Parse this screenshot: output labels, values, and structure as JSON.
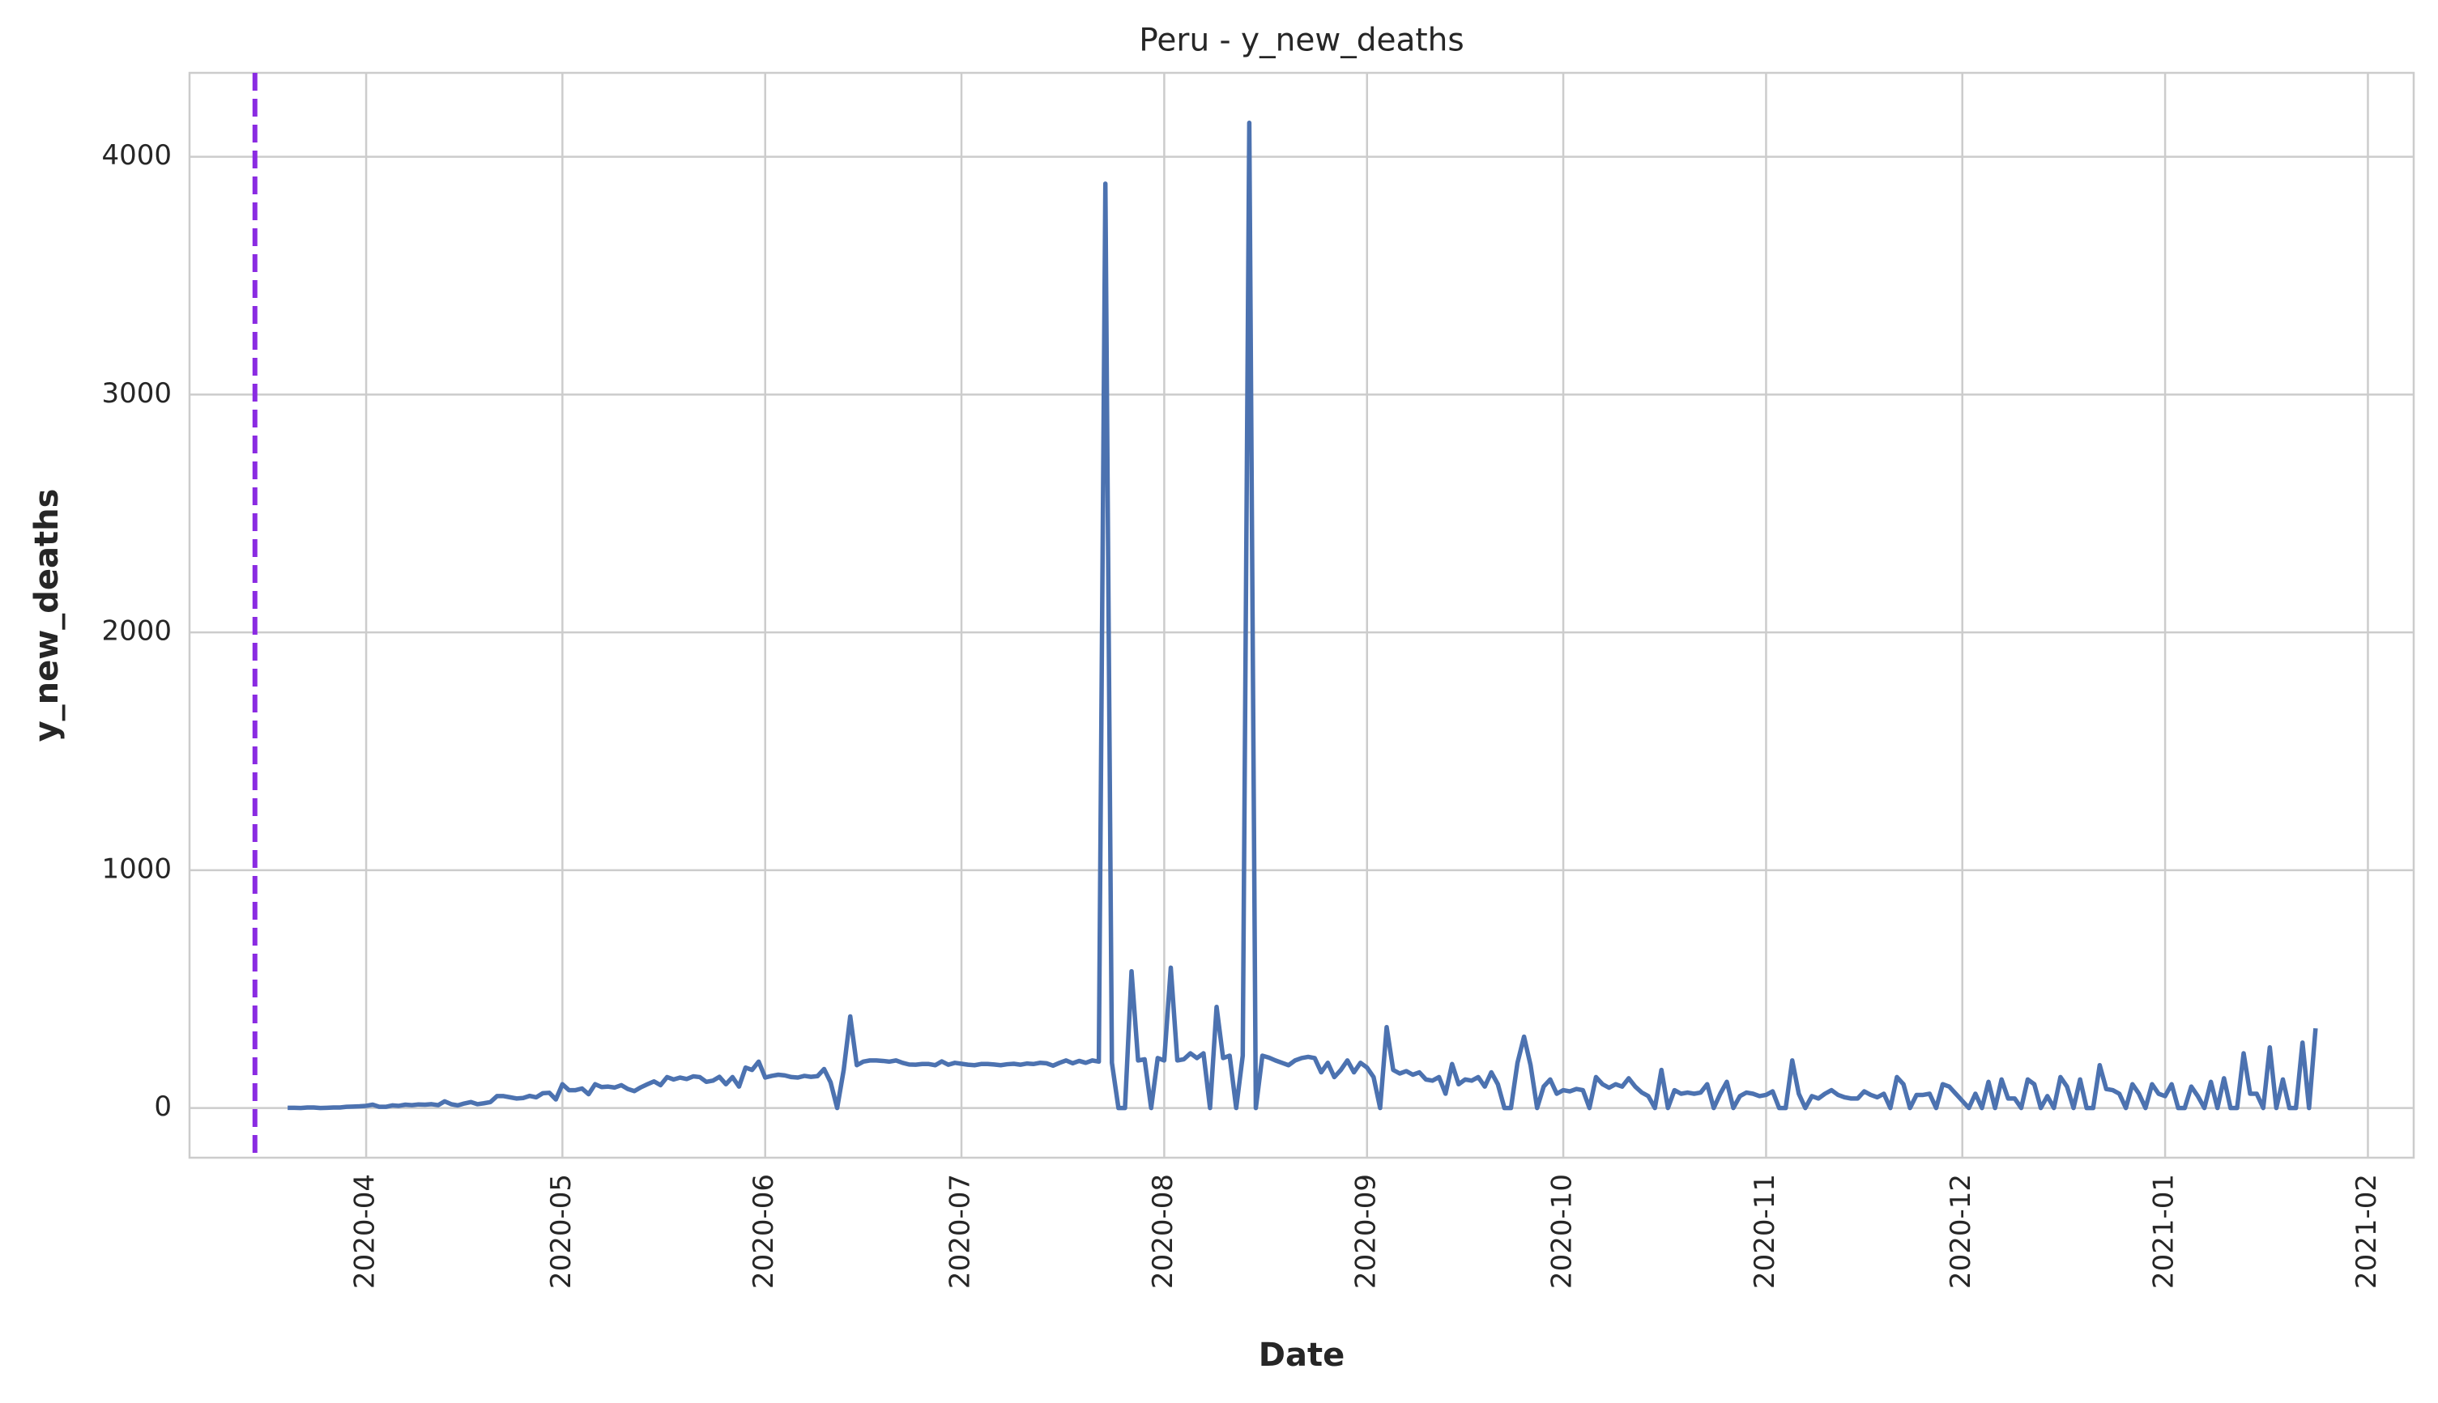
{
  "chart_data": {
    "type": "line",
    "title": "Peru - y_new_deaths",
    "x_label": "Date",
    "y_label": "y_new_deaths",
    "color": "#4c72b0",
    "grid": true,
    "vlines": [
      {
        "x": "2020-03-15",
        "color": "#8a2be2",
        "style": "dashed"
      }
    ],
    "xlim": [
      "2020-03-05",
      "2021-02-08"
    ],
    "ylim": [
      -209,
      4353
    ],
    "yticks": [
      0,
      1000,
      2000,
      3000,
      4000
    ],
    "xticks": [
      {
        "value": "2020-04-01",
        "label": "2020-04"
      },
      {
        "value": "2020-05-01",
        "label": "2020-05"
      },
      {
        "value": "2020-06-01",
        "label": "2020-06"
      },
      {
        "value": "2020-07-01",
        "label": "2020-07"
      },
      {
        "value": "2020-08-01",
        "label": "2020-08"
      },
      {
        "value": "2020-09-01",
        "label": "2020-09"
      },
      {
        "value": "2020-10-01",
        "label": "2020-10"
      },
      {
        "value": "2020-11-01",
        "label": "2020-11"
      },
      {
        "value": "2020-12-01",
        "label": "2020-12"
      },
      {
        "value": "2021-01-01",
        "label": "2021-01"
      },
      {
        "value": "2021-02-01",
        "label": "2021-02"
      }
    ],
    "x": [
      "2020-03-20",
      "2020-03-21",
      "2020-03-22",
      "2020-03-23",
      "2020-03-24",
      "2020-03-25",
      "2020-03-26",
      "2020-03-27",
      "2020-03-28",
      "2020-03-29",
      "2020-03-30",
      "2020-03-31",
      "2020-04-01",
      "2020-04-02",
      "2020-04-03",
      "2020-04-04",
      "2020-04-05",
      "2020-04-06",
      "2020-04-07",
      "2020-04-08",
      "2020-04-09",
      "2020-04-10",
      "2020-04-11",
      "2020-04-12",
      "2020-04-13",
      "2020-04-14",
      "2020-04-15",
      "2020-04-16",
      "2020-04-17",
      "2020-04-18",
      "2020-04-19",
      "2020-04-20",
      "2020-04-21",
      "2020-04-22",
      "2020-04-23",
      "2020-04-24",
      "2020-04-25",
      "2020-04-26",
      "2020-04-27",
      "2020-04-28",
      "2020-04-29",
      "2020-04-30",
      "2020-05-01",
      "2020-05-02",
      "2020-05-03",
      "2020-05-04",
      "2020-05-05",
      "2020-05-06",
      "2020-05-07",
      "2020-05-08",
      "2020-05-09",
      "2020-05-10",
      "2020-05-11",
      "2020-05-12",
      "2020-05-13",
      "2020-05-14",
      "2020-05-15",
      "2020-05-16",
      "2020-05-17",
      "2020-05-18",
      "2020-05-19",
      "2020-05-20",
      "2020-05-21",
      "2020-05-22",
      "2020-05-23",
      "2020-05-24",
      "2020-05-25",
      "2020-05-26",
      "2020-05-27",
      "2020-05-28",
      "2020-05-29",
      "2020-05-30",
      "2020-05-31",
      "2020-06-01",
      "2020-06-02",
      "2020-06-03",
      "2020-06-04",
      "2020-06-05",
      "2020-06-06",
      "2020-06-07",
      "2020-06-08",
      "2020-06-09",
      "2020-06-10",
      "2020-06-11",
      "2020-06-12",
      "2020-06-13",
      "2020-06-14",
      "2020-06-15",
      "2020-06-16",
      "2020-06-17",
      "2020-06-18",
      "2020-06-19",
      "2020-06-20",
      "2020-06-21",
      "2020-06-22",
      "2020-06-23",
      "2020-06-24",
      "2020-06-25",
      "2020-06-26",
      "2020-06-27",
      "2020-06-28",
      "2020-06-29",
      "2020-06-30",
      "2020-07-01",
      "2020-07-02",
      "2020-07-03",
      "2020-07-04",
      "2020-07-05",
      "2020-07-06",
      "2020-07-07",
      "2020-07-08",
      "2020-07-09",
      "2020-07-10",
      "2020-07-11",
      "2020-07-12",
      "2020-07-13",
      "2020-07-14",
      "2020-07-15",
      "2020-07-16",
      "2020-07-17",
      "2020-07-18",
      "2020-07-19",
      "2020-07-20",
      "2020-07-21",
      "2020-07-22",
      "2020-07-23",
      "2020-07-24",
      "2020-07-25",
      "2020-07-26",
      "2020-07-27",
      "2020-07-28",
      "2020-07-29",
      "2020-07-30",
      "2020-07-31",
      "2020-08-01",
      "2020-08-02",
      "2020-08-03",
      "2020-08-04",
      "2020-08-05",
      "2020-08-06",
      "2020-08-07",
      "2020-08-08",
      "2020-08-09",
      "2020-08-10",
      "2020-08-11",
      "2020-08-12",
      "2020-08-13",
      "2020-08-14",
      "2020-08-15",
      "2020-08-16",
      "2020-08-17",
      "2020-08-18",
      "2020-08-19",
      "2020-08-20",
      "2020-08-21",
      "2020-08-22",
      "2020-08-23",
      "2020-08-24",
      "2020-08-25",
      "2020-08-26",
      "2020-08-27",
      "2020-08-28",
      "2020-08-29",
      "2020-08-30",
      "2020-08-31",
      "2020-09-01",
      "2020-09-02",
      "2020-09-03",
      "2020-09-04",
      "2020-09-05",
      "2020-09-06",
      "2020-09-07",
      "2020-09-08",
      "2020-09-09",
      "2020-09-10",
      "2020-09-11",
      "2020-09-12",
      "2020-09-13",
      "2020-09-14",
      "2020-09-15",
      "2020-09-16",
      "2020-09-17",
      "2020-09-18",
      "2020-09-19",
      "2020-09-20",
      "2020-09-21",
      "2020-09-22",
      "2020-09-23",
      "2020-09-24",
      "2020-09-25",
      "2020-09-26",
      "2020-09-27",
      "2020-09-28",
      "2020-09-29",
      "2020-09-30",
      "2020-10-01",
      "2020-10-02",
      "2020-10-03",
      "2020-10-04",
      "2020-10-05",
      "2020-10-06",
      "2020-10-07",
      "2020-10-08",
      "2020-10-09",
      "2020-10-10",
      "2020-10-11",
      "2020-10-12",
      "2020-10-13",
      "2020-10-14",
      "2020-10-15",
      "2020-10-16",
      "2020-10-17",
      "2020-10-18",
      "2020-10-19",
      "2020-10-20",
      "2020-10-21",
      "2020-10-22",
      "2020-10-23",
      "2020-10-24",
      "2020-10-25",
      "2020-10-26",
      "2020-10-27",
      "2020-10-28",
      "2020-10-29",
      "2020-10-30",
      "2020-10-31",
      "2020-11-01",
      "2020-11-02",
      "2020-11-03",
      "2020-11-04",
      "2020-11-05",
      "2020-11-06",
      "2020-11-07",
      "2020-11-08",
      "2020-11-09",
      "2020-11-10",
      "2020-11-11",
      "2020-11-12",
      "2020-11-13",
      "2020-11-14",
      "2020-11-15",
      "2020-11-16",
      "2020-11-17",
      "2020-11-18",
      "2020-11-19",
      "2020-11-20",
      "2020-11-21",
      "2020-11-22",
      "2020-11-23",
      "2020-11-24",
      "2020-11-25",
      "2020-11-26",
      "2020-11-27",
      "2020-11-28",
      "2020-11-29",
      "2020-11-30",
      "2020-12-01",
      "2020-12-02",
      "2020-12-03",
      "2020-12-04",
      "2020-12-05",
      "2020-12-06",
      "2020-12-07",
      "2020-12-08",
      "2020-12-09",
      "2020-12-10",
      "2020-12-11",
      "2020-12-12",
      "2020-12-13",
      "2020-12-14",
      "2020-12-15",
      "2020-12-16",
      "2020-12-17",
      "2020-12-18",
      "2020-12-19",
      "2020-12-20",
      "2020-12-21",
      "2020-12-22",
      "2020-12-23",
      "2020-12-24",
      "2020-12-25",
      "2020-12-26",
      "2020-12-27",
      "2020-12-28",
      "2020-12-29",
      "2020-12-30",
      "2020-12-31",
      "2021-01-01",
      "2021-01-02",
      "2021-01-03",
      "2021-01-04",
      "2021-01-05",
      "2021-01-06",
      "2021-01-07",
      "2021-01-08",
      "2021-01-09",
      "2021-01-10",
      "2021-01-11",
      "2021-01-12",
      "2021-01-13",
      "2021-01-14",
      "2021-01-15",
      "2021-01-16",
      "2021-01-17",
      "2021-01-18",
      "2021-01-19",
      "2021-01-20",
      "2021-01-21",
      "2021-01-22",
      "2021-01-23",
      "2021-01-24"
    ],
    "values": [
      1,
      1,
      0,
      2,
      2,
      0,
      1,
      2,
      2,
      5,
      6,
      7,
      9,
      14,
      5,
      5,
      11,
      9,
      14,
      12,
      15,
      14,
      16,
      12,
      28,
      16,
      11,
      19,
      25,
      16,
      20,
      25,
      50,
      50,
      45,
      40,
      42,
      51,
      45,
      62,
      64,
      36,
      100,
      75,
      75,
      82,
      58,
      100,
      88,
      90,
      86,
      96,
      80,
      71,
      87,
      100,
      112,
      96,
      130,
      120,
      128,
      122,
      133,
      130,
      110,
      115,
      131,
      100,
      130,
      90,
      170,
      160,
      195,
      128,
      135,
      140,
      137,
      130,
      128,
      135,
      131,
      134,
      164,
      108,
      0,
      160,
      385,
      180,
      195,
      200,
      200,
      198,
      195,
      200,
      190,
      183,
      182,
      185,
      185,
      180,
      196,
      182,
      190,
      186,
      182,
      180,
      185,
      185,
      183,
      180,
      184,
      186,
      182,
      187,
      185,
      190,
      188,
      178,
      190,
      200,
      188,
      198,
      190,
      200,
      195,
      3887,
      190,
      0,
      0,
      575,
      200,
      205,
      0,
      210,
      200,
      590,
      200,
      205,
      230,
      210,
      230,
      0,
      425,
      210,
      220,
      0,
      220,
      4143,
      0,
      220,
      212,
      200,
      190,
      180,
      200,
      210,
      215,
      210,
      150,
      190,
      130,
      160,
      200,
      150,
      190,
      170,
      130,
      0,
      340,
      160,
      145,
      155,
      140,
      150,
      120,
      115,
      130,
      60,
      185,
      100,
      120,
      115,
      130,
      90,
      150,
      100,
      0,
      0,
      190,
      300,
      180,
      0,
      90,
      120,
      60,
      75,
      70,
      80,
      75,
      0,
      130,
      100,
      85,
      100,
      90,
      125,
      90,
      65,
      50,
      0,
      160,
      0,
      75,
      60,
      65,
      60,
      65,
      100,
      0,
      60,
      110,
      0,
      50,
      65,
      60,
      50,
      55,
      70,
      0,
      0,
      200,
      60,
      0,
      50,
      40,
      60,
      75,
      55,
      45,
      40,
      40,
      70,
      55,
      45,
      60,
      0,
      130,
      100,
      0,
      55,
      55,
      60,
      0,
      100,
      90,
      60,
      30,
      0,
      60,
      0,
      110,
      0,
      120,
      40,
      40,
      0,
      120,
      100,
      0,
      50,
      0,
      130,
      90,
      0,
      120,
      0,
      0,
      180,
      80,
      75,
      60,
      0,
      100,
      60,
      0,
      100,
      60,
      50,
      100,
      0,
      0,
      90,
      50,
      0,
      110,
      0,
      125,
      0,
      0,
      230,
      60,
      60,
      0,
      255,
      0,
      120,
      0,
      0,
      275,
      0,
      335
    ]
  }
}
